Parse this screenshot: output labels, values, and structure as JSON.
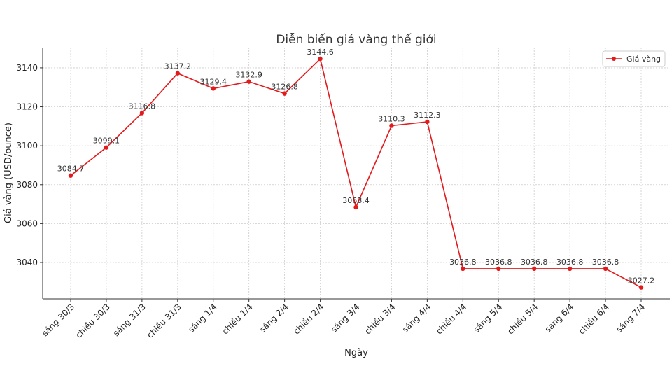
{
  "chart_data": {
    "type": "line",
    "title": "Diễn biến giá vàng thế giới",
    "xlabel": "Ngày",
    "ylabel": "Giá vàng (USD/ounce)",
    "categories": [
      "sáng 30/3",
      "chiều 30/3",
      "sáng 31/3",
      "chiều 31/3",
      "sáng 1/4",
      "chiều 1/4",
      "sáng 2/4",
      "chiều 2/4",
      "sáng 3/4",
      "chiều 3/4",
      "sáng 4/4",
      "chiều 4/4",
      "sáng 5/4",
      "chiều 5/4",
      "sáng 6/4",
      "chiều 6/4",
      "sáng 7/4"
    ],
    "series": [
      {
        "name": "Giá vàng",
        "color": "#e31a1c",
        "values": [
          3084.7,
          3099.1,
          3116.8,
          3137.2,
          3129.4,
          3132.9,
          3126.8,
          3144.6,
          3068.4,
          3110.3,
          3112.3,
          3036.8,
          3036.8,
          3036.8,
          3036.8,
          3036.8,
          3027.2
        ]
      }
    ],
    "data_labels": [
      "3084.7",
      "3099.1",
      "3116.8",
      "3137.2",
      "3129.4",
      "3132.9",
      "3126.8",
      "3144.6",
      "3068.4",
      "3110.3",
      "3112.3",
      "3036.8",
      "3036.8",
      "3036.8",
      "3036.8",
      "3036.8",
      "3027.2"
    ],
    "yticks": [
      3040,
      3060,
      3080,
      3100,
      3120,
      3140
    ],
    "ylim": [
      3021.3,
      3150.4
    ],
    "grid": true,
    "legend_position": "upper right"
  },
  "legend": {
    "label": "Giá vàng"
  }
}
